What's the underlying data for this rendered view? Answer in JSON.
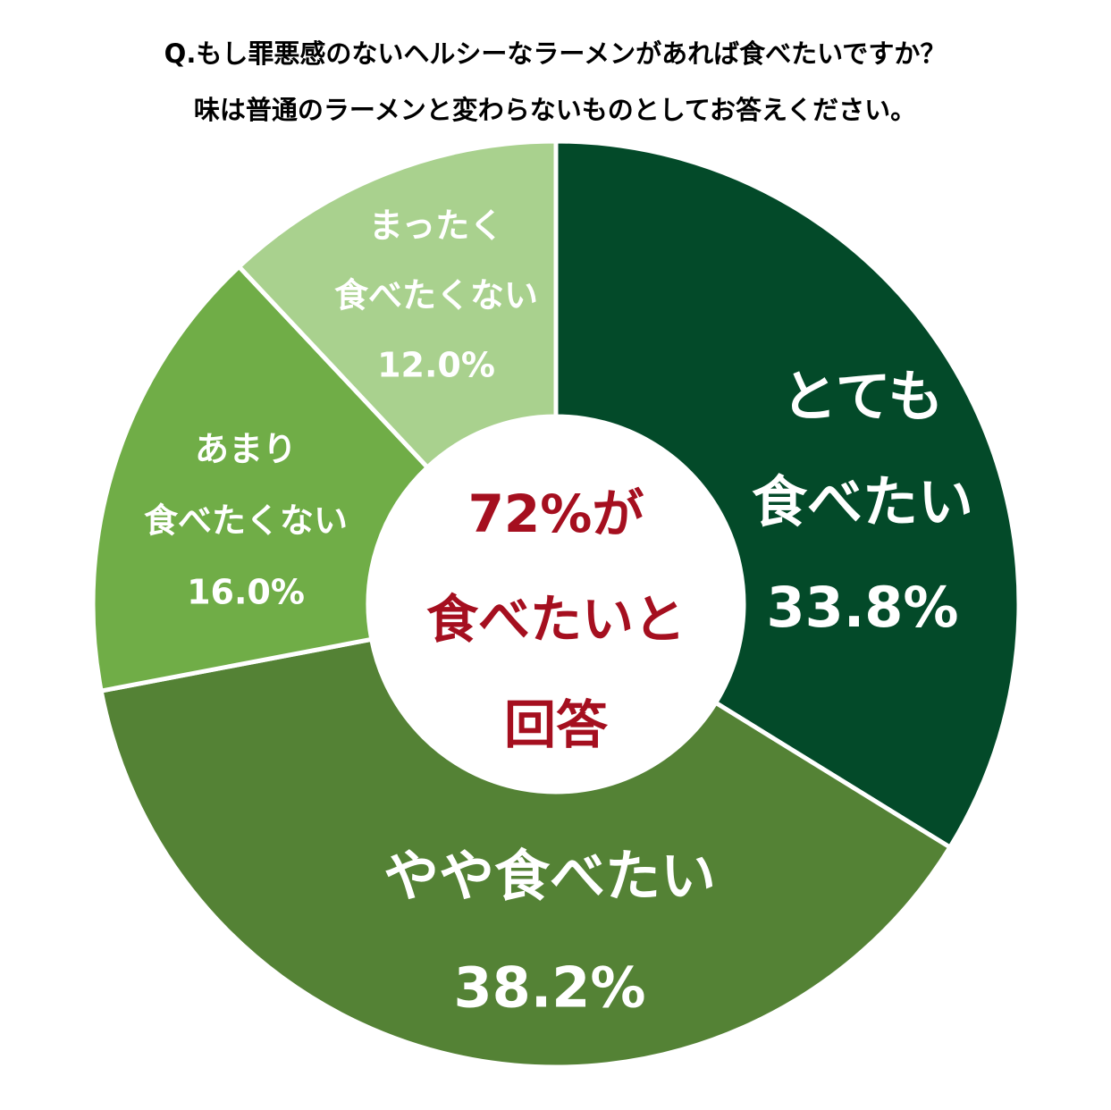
{
  "chart_data": {
    "type": "pie",
    "title": [
      "Q.もし罪悪感のないヘルシーなラーメンがあれば食べたいですか？",
      "味は普通のラーメンと変わらないものとしてお答えください。"
    ],
    "categories": [
      [
        "とても",
        "食べたい"
      ],
      [
        "やや食べたい"
      ],
      [
        "あまり",
        "食べたくない"
      ],
      [
        "まったく",
        "食べたくない"
      ]
    ],
    "values": [
      33.8,
      38.2,
      16.0,
      12.0
    ],
    "value_labels": [
      "33.8%",
      "38.2%",
      "16.0%",
      "12.0%"
    ],
    "colors": [
      "#034a29",
      "#548235",
      "#70ad47",
      "#a9d18e"
    ],
    "center_text": [
      "72%が",
      "食べたいと",
      "回答"
    ]
  }
}
